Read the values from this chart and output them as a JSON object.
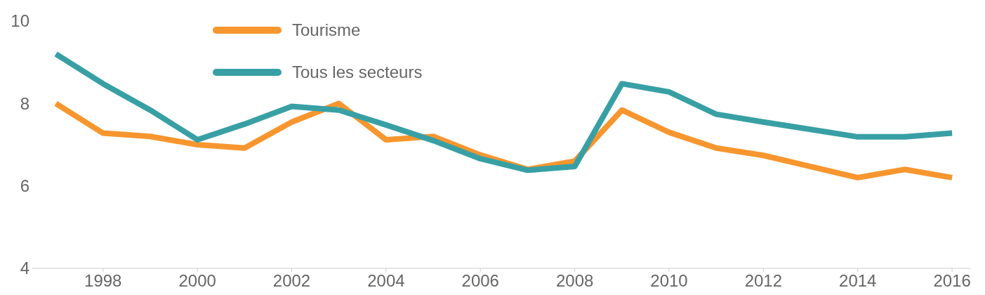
{
  "chart_data": {
    "type": "line",
    "x": [
      1997,
      1998,
      1999,
      2000,
      2001,
      2002,
      2003,
      2004,
      2005,
      2006,
      2007,
      2008,
      2009,
      2010,
      2011,
      2012,
      2013,
      2014,
      2015,
      2016
    ],
    "series": [
      {
        "name": "Tourisme",
        "color": "#f7962f",
        "values": [
          8.0,
          7.28,
          7.2,
          7.0,
          6.92,
          7.55,
          8.0,
          7.12,
          7.2,
          6.75,
          6.4,
          6.6,
          7.84,
          7.3,
          6.92,
          6.74,
          6.47,
          6.2,
          6.4,
          6.2
        ]
      },
      {
        "name": "Tous les secteurs",
        "color": "#38a0a4",
        "values": [
          9.2,
          8.48,
          7.84,
          7.12,
          7.5,
          7.93,
          7.84,
          7.48,
          7.1,
          6.66,
          6.38,
          6.47,
          8.48,
          8.28,
          7.74,
          7.55,
          7.37,
          7.19,
          7.19,
          7.28
        ]
      }
    ],
    "xlim": [
      1996.5,
      2016.4
    ],
    "xticks": [
      1998,
      2000,
      2002,
      2004,
      2006,
      2008,
      2010,
      2012,
      2014,
      2016
    ],
    "ylim": [
      4,
      10
    ],
    "yticks": [
      4,
      6,
      8,
      10
    ],
    "grid": false,
    "legend": "top left",
    "marker": "none",
    "line_style": "solid"
  }
}
